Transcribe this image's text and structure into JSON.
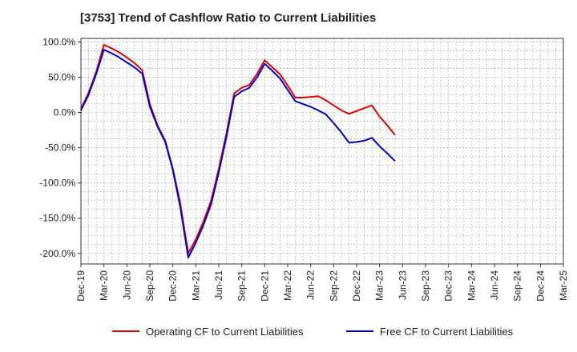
{
  "chart_data": {
    "type": "line",
    "title": "[3753]  Trend of Cashflow Ratio to Current Liabilities",
    "xlabel": "",
    "ylabel": "",
    "ylim": [
      -215,
      105
    ],
    "y_ticks": [
      100,
      50,
      0,
      -50,
      -100,
      -150,
      -200
    ],
    "y_tick_labels": [
      "100.0%",
      "50.0%",
      "0.0%",
      "-50.0%",
      "-100.0%",
      "-150.0%",
      "-200.0%"
    ],
    "x_tick_labels": [
      "Dec-19",
      "Mar-20",
      "Jun-20",
      "Sep-20",
      "Dec-20",
      "Mar-21",
      "Jun-21",
      "Sep-21",
      "Dec-21",
      "Mar-22",
      "Jun-22",
      "Sep-22",
      "Dec-22",
      "Mar-23",
      "Jun-23",
      "Sep-23",
      "Dec-23",
      "Mar-24",
      "Jun-24",
      "Sep-24",
      "Dec-24",
      "Mar-25"
    ],
    "grid": true,
    "legend_position": "bottom",
    "series": [
      {
        "name": "Operating CF to Current Liabilities",
        "color": "#e00000",
        "points": [
          [
            0,
            5
          ],
          [
            0.33,
            28
          ],
          [
            0.67,
            58
          ],
          [
            1,
            96
          ],
          [
            1.33,
            91
          ],
          [
            1.67,
            85
          ],
          [
            2,
            78
          ],
          [
            2.33,
            70
          ],
          [
            2.67,
            60
          ],
          [
            3,
            12
          ],
          [
            3.33,
            -18
          ],
          [
            3.67,
            -40
          ],
          [
            4,
            -80
          ],
          [
            4.33,
            -130
          ],
          [
            4.67,
            -200
          ],
          [
            5,
            -180
          ],
          [
            5.33,
            -155
          ],
          [
            5.67,
            -125
          ],
          [
            6,
            -80
          ],
          [
            6.33,
            -30
          ],
          [
            6.67,
            27
          ],
          [
            7,
            35
          ],
          [
            7.33,
            39
          ],
          [
            7.67,
            55
          ],
          [
            8,
            74
          ],
          [
            8.33,
            64
          ],
          [
            8.67,
            54
          ],
          [
            9,
            38
          ],
          [
            9.33,
            21
          ],
          [
            9.67,
            21
          ],
          [
            10,
            22
          ],
          [
            10.33,
            23
          ],
          [
            10.67,
            17
          ],
          [
            11,
            10
          ],
          [
            11.33,
            3
          ],
          [
            11.67,
            -2
          ],
          [
            12,
            2
          ],
          [
            12.33,
            6
          ],
          [
            12.67,
            10
          ],
          [
            13,
            -6
          ],
          [
            13.33,
            -18
          ],
          [
            13.67,
            -32
          ]
        ]
      },
      {
        "name": "Free CF to Current Liabilities",
        "color": "#0000cc",
        "points": [
          [
            0,
            3
          ],
          [
            0.33,
            25
          ],
          [
            0.67,
            55
          ],
          [
            1,
            89
          ],
          [
            1.33,
            84
          ],
          [
            1.67,
            78
          ],
          [
            2,
            71
          ],
          [
            2.33,
            64
          ],
          [
            2.67,
            55
          ],
          [
            3,
            8
          ],
          [
            3.33,
            -20
          ],
          [
            3.67,
            -42
          ],
          [
            4,
            -82
          ],
          [
            4.33,
            -135
          ],
          [
            4.67,
            -206
          ],
          [
            5,
            -185
          ],
          [
            5.33,
            -160
          ],
          [
            5.67,
            -130
          ],
          [
            6,
            -85
          ],
          [
            6.33,
            -35
          ],
          [
            6.67,
            22
          ],
          [
            7,
            30
          ],
          [
            7.33,
            35
          ],
          [
            7.67,
            50
          ],
          [
            8,
            69
          ],
          [
            8.33,
            59
          ],
          [
            8.67,
            48
          ],
          [
            9,
            32
          ],
          [
            9.33,
            16
          ],
          [
            9.67,
            12
          ],
          [
            10,
            8
          ],
          [
            10.33,
            3
          ],
          [
            10.67,
            -3
          ],
          [
            11,
            -15
          ],
          [
            11.33,
            -28
          ],
          [
            11.67,
            -43
          ],
          [
            12,
            -42
          ],
          [
            12.33,
            -40
          ],
          [
            12.67,
            -36
          ],
          [
            13,
            -48
          ],
          [
            13.33,
            -58
          ],
          [
            13.67,
            -69
          ]
        ]
      }
    ]
  }
}
